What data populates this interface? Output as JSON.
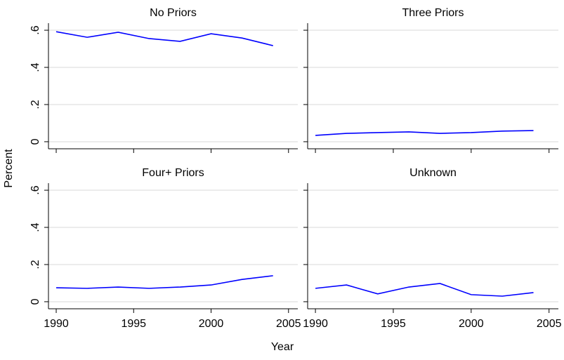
{
  "shared_axes": {
    "xlabel": "Year",
    "ylabel": "Percent",
    "xlim": [
      1989.5,
      2005.6
    ],
    "xticks": [
      1990,
      1995,
      2000,
      2005
    ],
    "ylim": [
      -0.038,
      0.638
    ],
    "yticks": [
      0,
      {
        "value": 0.2,
        "label": ".2"
      },
      {
        "value": 0.4,
        "label": ".4"
      },
      {
        "value": 0.6,
        "label": ".6"
      }
    ],
    "grid": true
  },
  "chart_data": [
    {
      "type": "line",
      "title": "No Priors",
      "color": "#0000ff",
      "x": [
        1990,
        1992,
        1994,
        1996,
        1998,
        2000,
        2002,
        2004
      ],
      "values": [
        0.592,
        0.562,
        0.589,
        0.555,
        0.54,
        0.581,
        0.558,
        0.517
      ]
    },
    {
      "type": "line",
      "title": "Three Priors",
      "color": "#0000ff",
      "x": [
        1990,
        1992,
        1994,
        1996,
        1998,
        2000,
        2002,
        2004
      ],
      "values": [
        0.034,
        0.045,
        0.049,
        0.053,
        0.045,
        0.049,
        0.057,
        0.06
      ]
    },
    {
      "type": "line",
      "title": "Four+ Priors",
      "color": "#0000ff",
      "x": [
        1990,
        1992,
        1994,
        1996,
        1998,
        2000,
        2002,
        2004
      ],
      "values": [
        0.075,
        0.072,
        0.079,
        0.072,
        0.079,
        0.09,
        0.12,
        0.14
      ]
    },
    {
      "type": "line",
      "title": "Unknown",
      "color": "#0000ff",
      "x": [
        1990,
        1992,
        1994,
        1996,
        1998,
        2000,
        2002,
        2004
      ],
      "values": [
        0.072,
        0.09,
        0.042,
        0.079,
        0.098,
        0.038,
        0.03,
        0.049
      ]
    }
  ]
}
